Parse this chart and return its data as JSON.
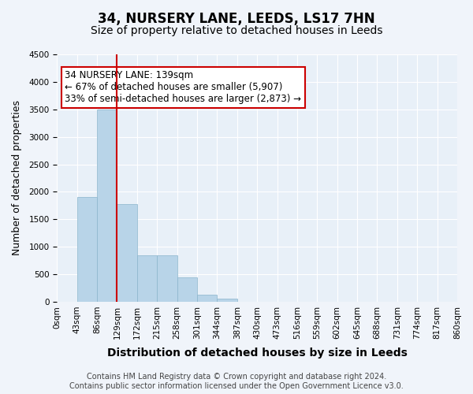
{
  "title": "34, NURSERY LANE, LEEDS, LS17 7HN",
  "subtitle": "Size of property relative to detached houses in Leeds",
  "xlabel": "Distribution of detached houses by size in Leeds",
  "ylabel": "Number of detached properties",
  "bar_values": [
    0,
    1900,
    3500,
    1780,
    850,
    850,
    450,
    130,
    50,
    0,
    0,
    0,
    0,
    0,
    0,
    0,
    0,
    0,
    0,
    0
  ],
  "bin_edges": [
    0,
    43,
    86,
    129,
    172,
    215,
    258,
    301,
    344,
    387,
    430,
    473,
    516,
    559,
    602,
    645,
    688,
    731,
    774,
    817,
    860
  ],
  "bin_labels": [
    "0sqm",
    "43sqm",
    "86sqm",
    "129sqm",
    "172sqm",
    "215sqm",
    "258sqm",
    "301sqm",
    "344sqm",
    "387sqm",
    "430sqm",
    "473sqm",
    "516sqm",
    "559sqm",
    "602sqm",
    "645sqm",
    "688sqm",
    "731sqm",
    "774sqm",
    "817sqm",
    "860sqm"
  ],
  "bar_color": "#b8d4e8",
  "bar_edge_color": "#8ab4cc",
  "vline_x": 3.0,
  "vline_color": "#cc0000",
  "annotation_text": "34 NURSERY LANE: 139sqm\n← 67% of detached houses are smaller (5,907)\n33% of semi-detached houses are larger (2,873) →",
  "annotation_box_edge": "#cc0000",
  "annotation_fontsize": 8.5,
  "ylim": [
    0,
    4500
  ],
  "yticks": [
    0,
    500,
    1000,
    1500,
    2000,
    2500,
    3000,
    3500,
    4000,
    4500
  ],
  "footer": "Contains HM Land Registry data © Crown copyright and database right 2024.\nContains public sector information licensed under the Open Government Licence v3.0.",
  "background_color": "#f0f4fa",
  "plot_background_color": "#e8f0f8",
  "grid_color": "#ffffff",
  "title_fontsize": 12,
  "subtitle_fontsize": 10,
  "xlabel_fontsize": 10,
  "ylabel_fontsize": 9,
  "tick_fontsize": 7.5,
  "footer_fontsize": 7
}
